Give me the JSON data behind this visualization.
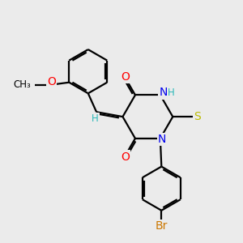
{
  "background_color": "#ebebeb",
  "atom_colors": {
    "C": "#000000",
    "H": "#2ab8b8",
    "N": "#0000ee",
    "O": "#ff0000",
    "S": "#bbbb00",
    "Br": "#cc7700"
  },
  "bond_color": "#000000",
  "bond_width": 1.6,
  "figsize": [
    3.0,
    3.0
  ],
  "dpi": 100
}
